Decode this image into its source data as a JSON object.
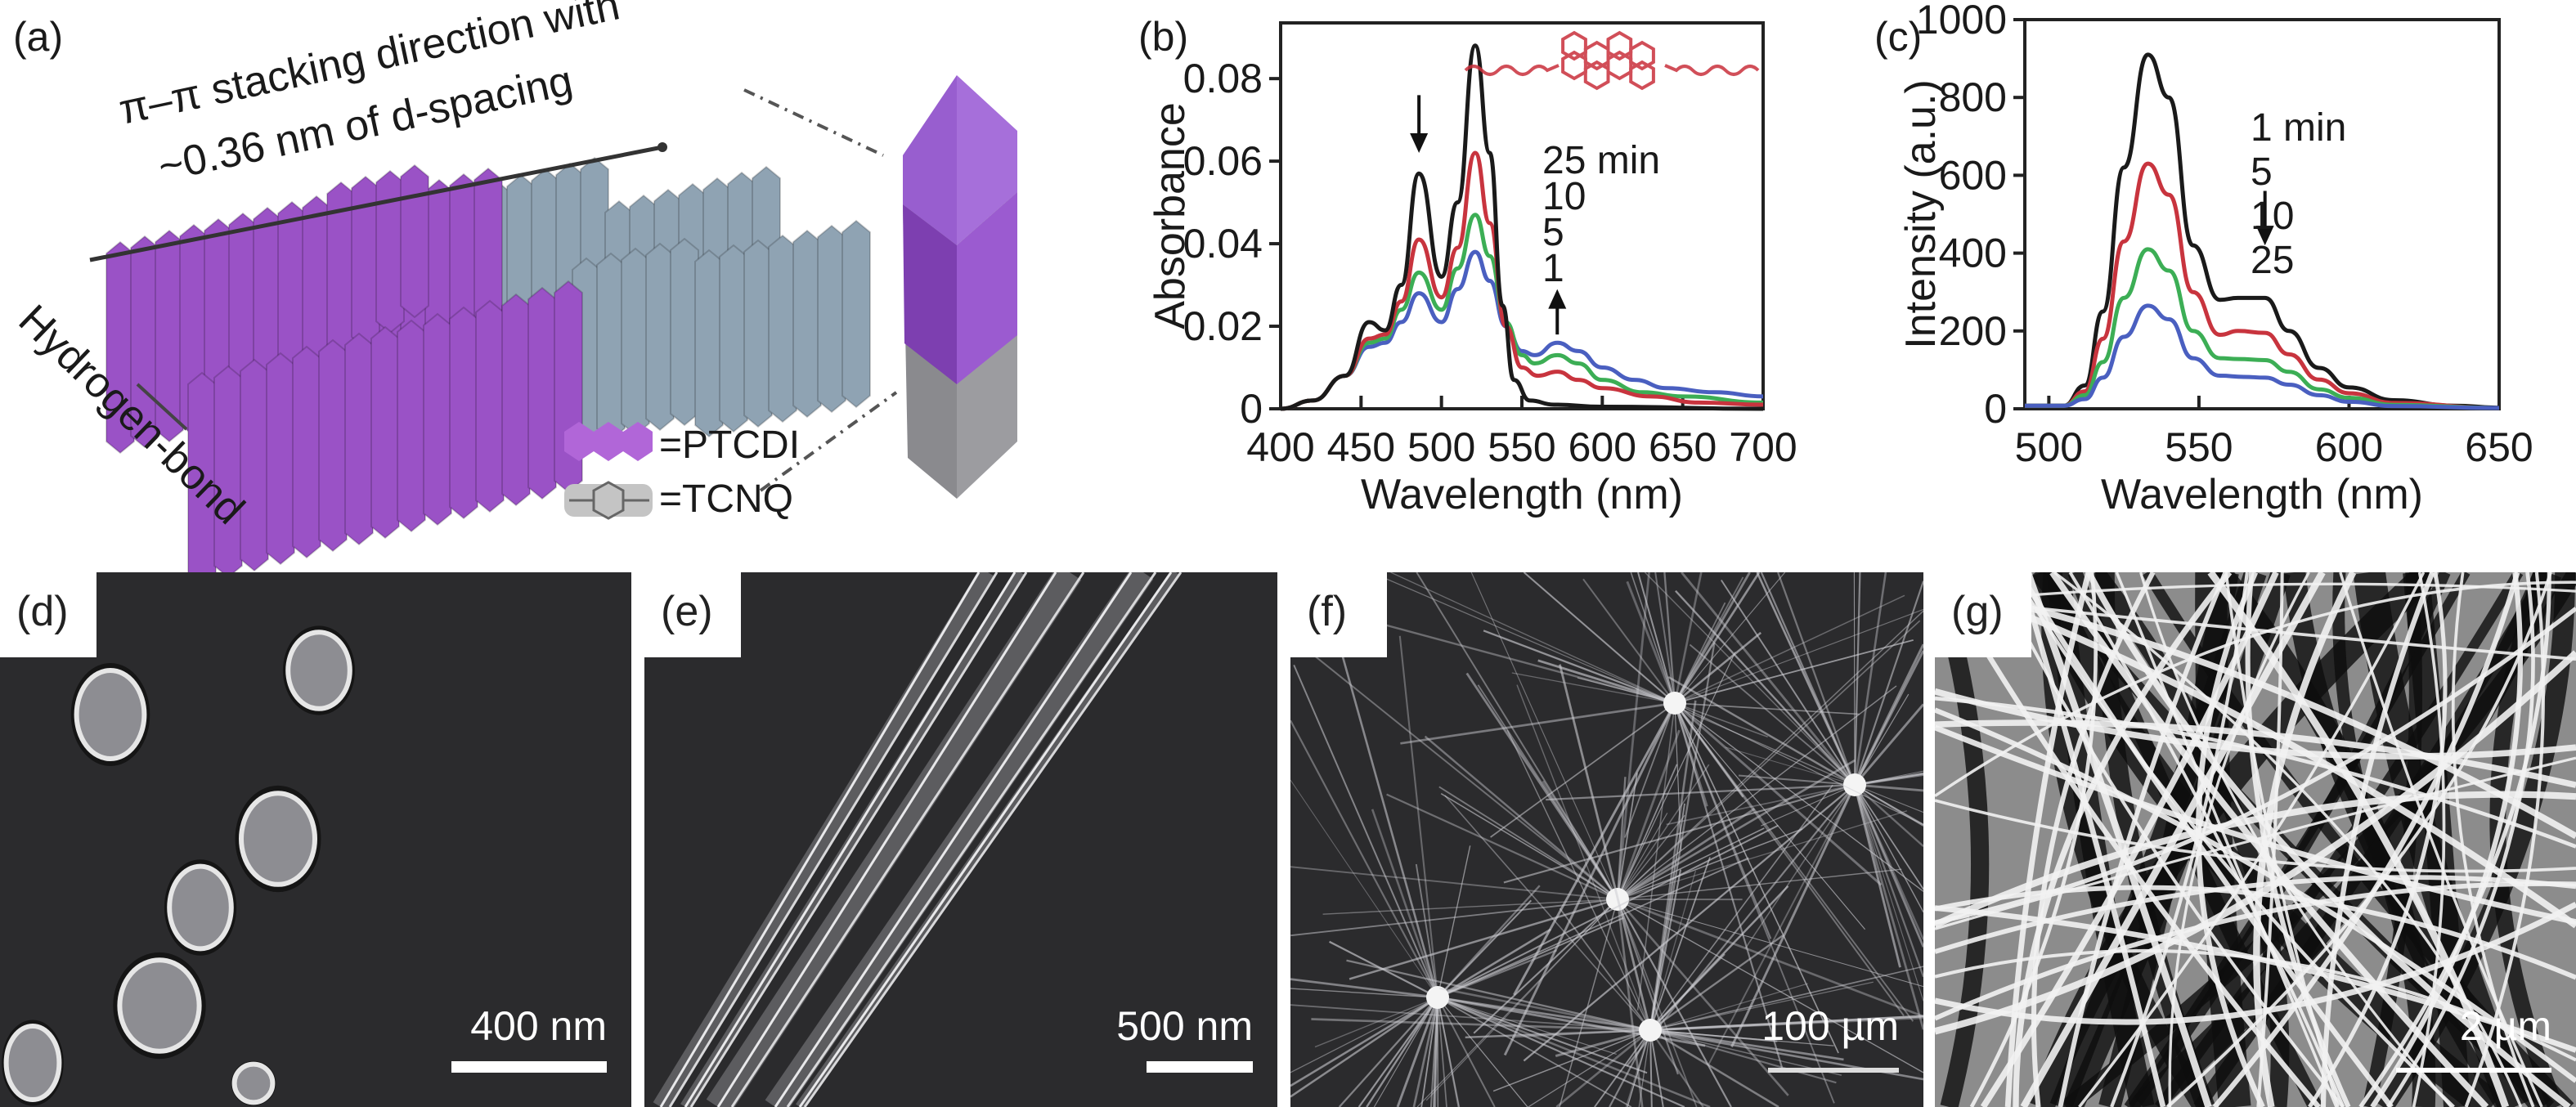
{
  "panel_a": {
    "label": "(a)",
    "stack_text_line1": "π–π stacking direction with",
    "stack_text_line2": "~0.36 nm of d-spacing",
    "hbond_text": "Hydrogen-bond",
    "legend": [
      {
        "label": "=PTCDI",
        "color": "#9a52c6"
      },
      {
        "label": "=TCNQ",
        "color": "#a8a8a8"
      }
    ],
    "colors": {
      "ptcdi": "#9a52c6",
      "tcnq": "#8fa3b3",
      "crystal_top": "#9b5bd0",
      "crystal_bottom": "#8a8a8e"
    }
  },
  "chart_data": [
    {
      "panel_label": "(b)",
      "type": "line",
      "xlabel": "Wavelength (nm)",
      "ylabel": "Absorbance",
      "xlim": [
        400,
        700
      ],
      "ylim": [
        0,
        0.0935
      ],
      "xticks": [
        {
          "v": 400,
          "t": "400"
        },
        {
          "v": 450,
          "t": "450"
        },
        {
          "v": 500,
          "t": "500"
        },
        {
          "v": 550,
          "t": "550"
        },
        {
          "v": 600,
          "t": "600"
        },
        {
          "v": 650,
          "t": "650"
        },
        {
          "v": 700,
          "t": "700"
        }
      ],
      "yticks": [
        {
          "v": 0,
          "t": "0"
        },
        {
          "v": 0.02,
          "t": "0.02"
        },
        {
          "v": 0.04,
          "t": "0.04"
        },
        {
          "v": 0.06,
          "t": "0.06"
        },
        {
          "v": 0.08,
          "t": "0.08"
        }
      ],
      "legend_labels": [
        "25 min",
        "10",
        "5",
        "1"
      ],
      "series": [
        {
          "name": "1 min",
          "color": "#4a5fc0",
          "points": [
            [
              400,
              0
            ],
            [
              420,
              0.002
            ],
            [
              440,
              0.008
            ],
            [
              455,
              0.015
            ],
            [
              465,
              0.016
            ],
            [
              475,
              0.021
            ],
            [
              486,
              0.028
            ],
            [
              500,
              0.021
            ],
            [
              510,
              0.029
            ],
            [
              521,
              0.038
            ],
            [
              530,
              0.031
            ],
            [
              540,
              0.02
            ],
            [
              550,
              0.014
            ],
            [
              558,
              0.013
            ],
            [
              572,
              0.016
            ],
            [
              585,
              0.014
            ],
            [
              600,
              0.01
            ],
            [
              620,
              0.007
            ],
            [
              640,
              0.005
            ],
            [
              670,
              0.004
            ],
            [
              700,
              0.003
            ]
          ]
        },
        {
          "name": "5 min",
          "color": "#3cae55",
          "points": [
            [
              400,
              0
            ],
            [
              420,
              0.002
            ],
            [
              440,
              0.008
            ],
            [
              455,
              0.016
            ],
            [
              465,
              0.017
            ],
            [
              475,
              0.024
            ],
            [
              486,
              0.033
            ],
            [
              500,
              0.024
            ],
            [
              510,
              0.034
            ],
            [
              521,
              0.047
            ],
            [
              530,
              0.037
            ],
            [
              540,
              0.021
            ],
            [
              550,
              0.013
            ],
            [
              558,
              0.011
            ],
            [
              572,
              0.013
            ],
            [
              585,
              0.011
            ],
            [
              600,
              0.007
            ],
            [
              625,
              0.004
            ],
            [
              650,
              0.003
            ],
            [
              700,
              0.0015
            ]
          ]
        },
        {
          "name": "10 min",
          "color": "#c8343e",
          "points": [
            [
              400,
              0
            ],
            [
              420,
              0.002
            ],
            [
              440,
              0.008
            ],
            [
              455,
              0.017
            ],
            [
              465,
              0.018
            ],
            [
              475,
              0.026
            ],
            [
              486,
              0.041
            ],
            [
              500,
              0.027
            ],
            [
              510,
              0.039
            ],
            [
              521,
              0.062
            ],
            [
              530,
              0.045
            ],
            [
              540,
              0.02
            ],
            [
              550,
              0.01
            ],
            [
              560,
              0.008
            ],
            [
              572,
              0.009
            ],
            [
              585,
              0.007
            ],
            [
              600,
              0.005
            ],
            [
              630,
              0.003
            ],
            [
              660,
              0.0015
            ],
            [
              700,
              0.001
            ]
          ]
        },
        {
          "name": "25 min",
          "color": "#1a1a1a",
          "points": [
            [
              400,
              0
            ],
            [
              420,
              0.002
            ],
            [
              440,
              0.008
            ],
            [
              455,
              0.021
            ],
            [
              465,
              0.019
            ],
            [
              475,
              0.03
            ],
            [
              486,
              0.057
            ],
            [
              500,
              0.032
            ],
            [
              510,
              0.05
            ],
            [
              521,
              0.088
            ],
            [
              530,
              0.062
            ],
            [
              538,
              0.025
            ],
            [
              545,
              0.007
            ],
            [
              555,
              0.002
            ],
            [
              570,
              0.001
            ],
            [
              600,
              0.0005
            ],
            [
              700,
              0
            ]
          ]
        }
      ],
      "arrows": [
        {
          "x": 486,
          "from": 0.076,
          "to": 0.062,
          "direction": "down"
        },
        {
          "x": 572,
          "from": 0.018,
          "to": 0.029,
          "direction": "up"
        }
      ],
      "inset": "PTCDI molecule structure",
      "inset_color": "#c9303c"
    },
    {
      "panel_label": "(c)",
      "type": "line",
      "xlabel": "Wavelength (nm)",
      "ylabel": "Intensity (a.u.)",
      "xlim": [
        492,
        650
      ],
      "ylim": [
        0,
        1000
      ],
      "xticks": [
        {
          "v": 500,
          "t": "500"
        },
        {
          "v": 550,
          "t": "550"
        },
        {
          "v": 600,
          "t": "600"
        },
        {
          "v": 650,
          "t": "650"
        }
      ],
      "yticks": [
        {
          "v": 0,
          "t": "0"
        },
        {
          "v": 200,
          "t": "200"
        },
        {
          "v": 400,
          "t": "400"
        },
        {
          "v": 600,
          "t": "600"
        },
        {
          "v": 800,
          "t": "800"
        },
        {
          "v": 1000,
          "t": "1000"
        }
      ],
      "legend_labels": [
        "1 min",
        "5",
        "10",
        "25"
      ],
      "series": [
        {
          "name": "1 min",
          "color": "#1a1a1a",
          "points": [
            [
              492,
              8
            ],
            [
              505,
              8
            ],
            [
              512,
              60
            ],
            [
              518,
              250
            ],
            [
              525,
              620
            ],
            [
              533,
              910
            ],
            [
              540,
              800
            ],
            [
              548,
              420
            ],
            [
              557,
              280
            ],
            [
              563,
              285
            ],
            [
              572,
              285
            ],
            [
              580,
              200
            ],
            [
              590,
              105
            ],
            [
              600,
              55
            ],
            [
              615,
              22
            ],
            [
              635,
              8
            ],
            [
              650,
              3
            ]
          ]
        },
        {
          "name": "5 min",
          "color": "#c8343e",
          "points": [
            [
              492,
              8
            ],
            [
              505,
              8
            ],
            [
              512,
              45
            ],
            [
              518,
              180
            ],
            [
              525,
              430
            ],
            [
              533,
              630
            ],
            [
              540,
              550
            ],
            [
              548,
              300
            ],
            [
              557,
              190
            ],
            [
              563,
              200
            ],
            [
              572,
              195
            ],
            [
              580,
              140
            ],
            [
              590,
              75
            ],
            [
              600,
              40
            ],
            [
              615,
              15
            ],
            [
              650,
              2
            ]
          ]
        },
        {
          "name": "10 min",
          "color": "#3cae55",
          "points": [
            [
              492,
              8
            ],
            [
              505,
              8
            ],
            [
              512,
              35
            ],
            [
              518,
              120
            ],
            [
              525,
              285
            ],
            [
              533,
              410
            ],
            [
              540,
              355
            ],
            [
              548,
              200
            ],
            [
              557,
              130
            ],
            [
              563,
              128
            ],
            [
              572,
              125
            ],
            [
              580,
              95
            ],
            [
              590,
              50
            ],
            [
              600,
              28
            ],
            [
              615,
              10
            ],
            [
              650,
              2
            ]
          ]
        },
        {
          "name": "25 min",
          "color": "#4a5fc0",
          "points": [
            [
              492,
              8
            ],
            [
              505,
              8
            ],
            [
              512,
              25
            ],
            [
              518,
              80
            ],
            [
              525,
              185
            ],
            [
              533,
              265
            ],
            [
              540,
              230
            ],
            [
              548,
              130
            ],
            [
              557,
              85
            ],
            [
              565,
              82
            ],
            [
              572,
              80
            ],
            [
              580,
              62
            ],
            [
              590,
              35
            ],
            [
              600,
              18
            ],
            [
              615,
              7
            ],
            [
              650,
              2
            ]
          ]
        }
      ],
      "arrows": [
        {
          "x": 572,
          "from": 560,
          "to": 420,
          "direction": "down"
        }
      ]
    }
  ],
  "micrographs": [
    {
      "label": "(d)",
      "scale_bar": "400 nm",
      "kind": "particles"
    },
    {
      "label": "(e)",
      "scale_bar": "500 nm",
      "kind": "rods"
    },
    {
      "label": "(f)",
      "scale_bar": "100 µm",
      "kind": "network"
    },
    {
      "label": "(g)",
      "scale_bar": "2 µm",
      "kind": "dense-fibers"
    }
  ]
}
